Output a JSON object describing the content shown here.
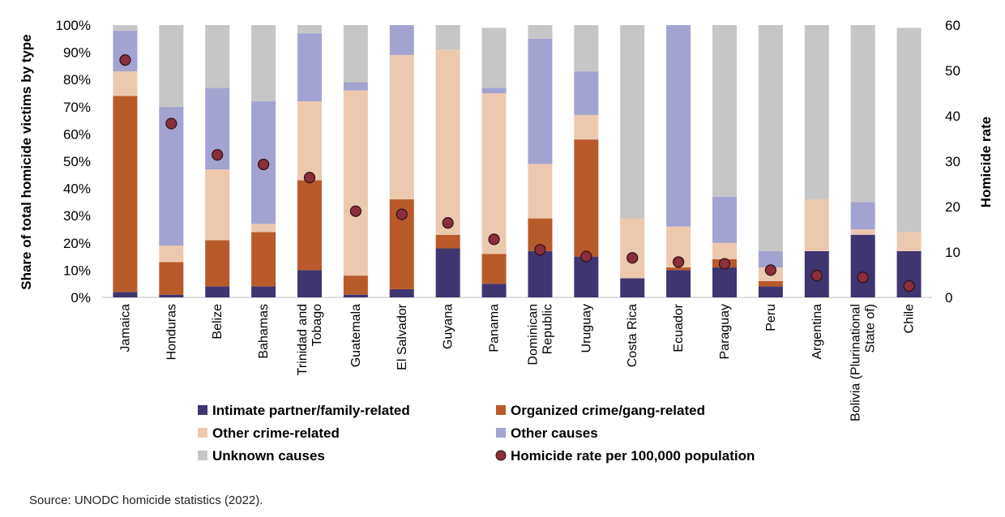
{
  "chart_data": {
    "type": "bar",
    "stacked": true,
    "categories": [
      [
        "Jamaica"
      ],
      [
        "Honduras"
      ],
      [
        "Belize"
      ],
      [
        "Bahamas"
      ],
      [
        "Trinidad and",
        "Tobago"
      ],
      [
        "Guatemala"
      ],
      [
        "El Salvador"
      ],
      [
        "Guyana"
      ],
      [
        "Panama"
      ],
      [
        "Dominican",
        "Republic"
      ],
      [
        "Uruguay"
      ],
      [
        "Costa Rica"
      ],
      [
        "Ecuador"
      ],
      [
        "Paraguay"
      ],
      [
        "Peru"
      ],
      [
        "Argentina"
      ],
      [
        "Bolivia (Plurinational",
        "State of)"
      ],
      [
        "Chile"
      ]
    ],
    "ylabel": "Share of total homicide victims by type",
    "y2label": "Homicide rate",
    "ylim": [
      0,
      100
    ],
    "y2lim": [
      0,
      60
    ],
    "yticks": [
      "0%",
      "10%",
      "20%",
      "30%",
      "40%",
      "50%",
      "60%",
      "70%",
      "80%",
      "90%",
      "100%"
    ],
    "y2ticks": [
      "0",
      "10",
      "20",
      "30",
      "40",
      "50",
      "60"
    ],
    "series": [
      {
        "name": "Intimate partner/family-related",
        "color": "#3f3570",
        "values": [
          2,
          1,
          4,
          4,
          10,
          1,
          3,
          18,
          5,
          17,
          15,
          7,
          10,
          11,
          4,
          17,
          23,
          17
        ]
      },
      {
        "name": "Organized crime/gang-related",
        "color": "#b95a2a",
        "values": [
          72,
          12,
          17,
          20,
          33,
          7,
          33,
          5,
          11,
          12,
          43,
          0,
          1,
          3,
          2,
          0,
          0,
          0
        ]
      },
      {
        "name": "Other crime-related",
        "color": "#ecc9ae",
        "values": [
          9,
          6,
          26,
          3,
          29,
          68,
          53,
          68,
          59,
          20,
          9,
          22,
          15,
          6,
          5,
          19,
          2,
          7
        ]
      },
      {
        "name": "Other causes",
        "color": "#a3a3d2",
        "values": [
          15,
          51,
          30,
          45,
          25,
          3,
          11,
          0,
          2,
          46,
          16,
          0,
          74,
          17,
          6,
          0,
          10,
          0
        ]
      },
      {
        "name": "Unknown causes",
        "color": "#c6c6c6",
        "values": [
          2,
          30,
          23,
          28,
          3,
          21,
          0,
          9,
          22,
          5,
          17,
          71,
          0,
          63,
          83,
          64,
          65,
          75
        ]
      }
    ],
    "rate": {
      "name": "Homicide rate per 100,000 population",
      "color": "#8b2f3a",
      "values": [
        52.3,
        38.3,
        31.4,
        29.3,
        26.4,
        19.0,
        18.3,
        16.4,
        12.8,
        10.5,
        9.0,
        8.7,
        7.8,
        7.4,
        6.0,
        4.8,
        4.4,
        2.5
      ]
    },
    "legend": "bottom"
  },
  "source": "Source: UNODC homicide statistics (2022)."
}
